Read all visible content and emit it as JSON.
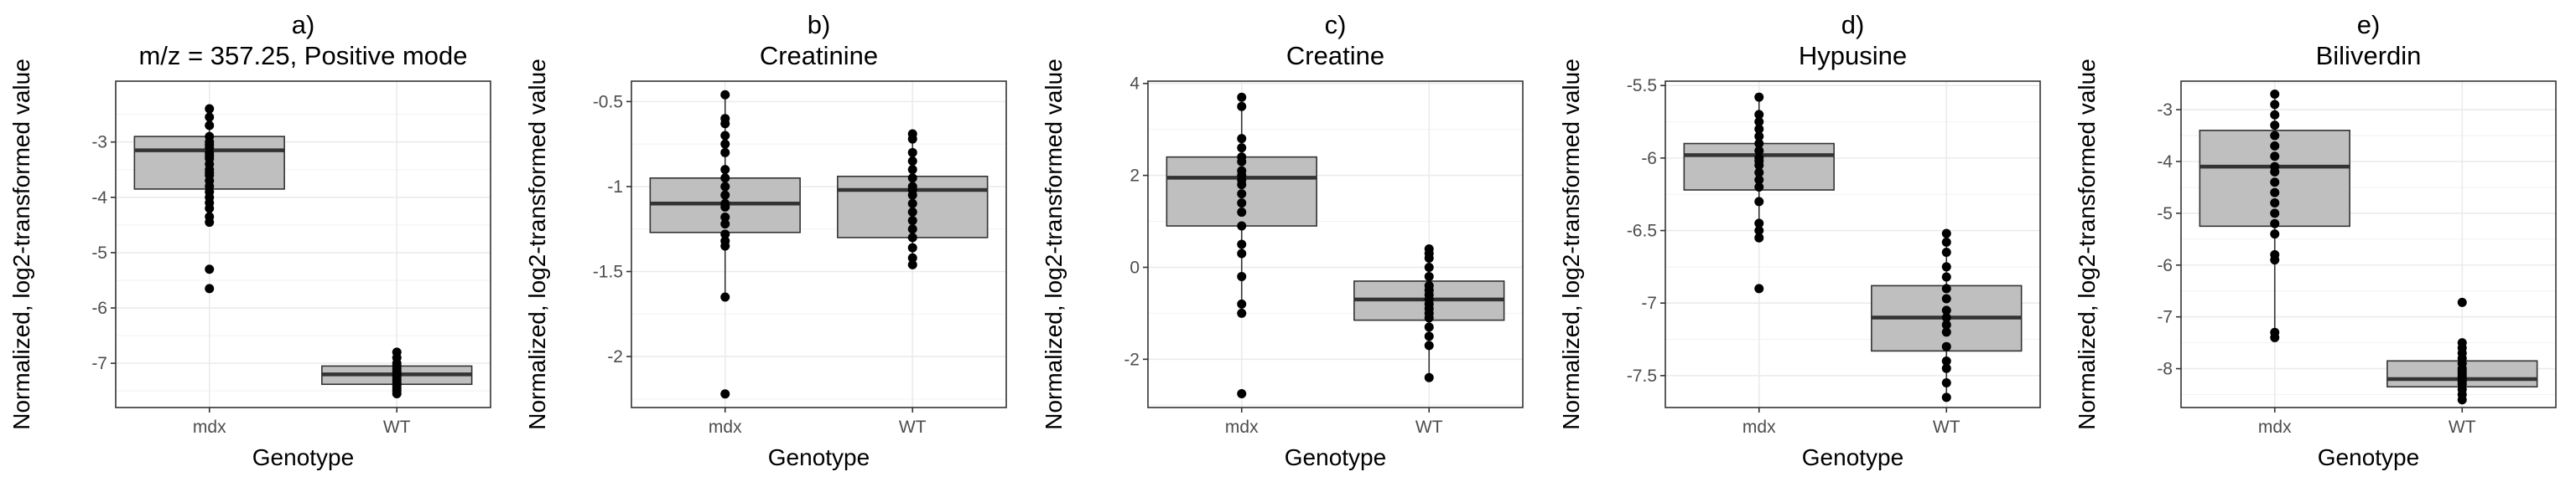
{
  "chart_data": [
    {
      "type": "box",
      "panel": "a)",
      "title": "m/z = 357.25, Positive mode",
      "xlabel": "Genotype",
      "ylabel": "Normalized, log2-transformed value",
      "categories": [
        "mdx",
        "WT"
      ],
      "ylim": [
        -7.8,
        -1.9
      ],
      "yticks": [
        -3,
        -4,
        -5,
        -6,
        -7
      ],
      "grid": true,
      "boxes": [
        {
          "category": "mdx",
          "q1": -3.85,
          "median": -3.15,
          "q3": -2.9,
          "whisker_low": -4.5,
          "whisker_high": -2.4
        },
        {
          "category": "WT",
          "q1": -7.38,
          "median": -7.2,
          "q3": -7.05,
          "whisker_low": -7.55,
          "whisker_high": -6.8
        }
      ],
      "points": [
        {
          "category": "mdx",
          "values": [
            -2.4,
            -2.55,
            -2.7,
            -2.9,
            -3.0,
            -3.05,
            -3.1,
            -3.2,
            -3.25,
            -3.3,
            -3.4,
            -3.5,
            -3.55,
            -3.6,
            -3.7,
            -3.8,
            -3.9,
            -4.0,
            -4.1,
            -4.2,
            -4.35,
            -4.45,
            -5.3,
            -5.65
          ]
        },
        {
          "category": "WT",
          "values": [
            -6.8,
            -6.9,
            -7.0,
            -7.05,
            -7.1,
            -7.15,
            -7.2,
            -7.2,
            -7.25,
            -7.3,
            -7.35,
            -7.4,
            -7.45,
            -7.5,
            -7.55
          ]
        }
      ]
    },
    {
      "type": "box",
      "panel": "b)",
      "title": "Creatinine",
      "xlabel": "Genotype",
      "ylabel": "Normalized, log2-transformed value",
      "categories": [
        "mdx",
        "WT"
      ],
      "ylim": [
        -2.3,
        -0.38
      ],
      "yticks": [
        -0.5,
        -1.0,
        -1.5,
        -2.0
      ],
      "grid": true,
      "boxes": [
        {
          "category": "mdx",
          "q1": -1.27,
          "median": -1.1,
          "q3": -0.95,
          "whisker_low": -1.65,
          "whisker_high": -0.46
        },
        {
          "category": "WT",
          "q1": -1.3,
          "median": -1.02,
          "q3": -0.94,
          "whisker_low": -1.46,
          "whisker_high": -0.69
        }
      ],
      "points": [
        {
          "category": "mdx",
          "values": [
            -0.46,
            -0.6,
            -0.63,
            -0.7,
            -0.75,
            -0.8,
            -0.9,
            -0.95,
            -1.0,
            -1.05,
            -1.1,
            -1.12,
            -1.18,
            -1.22,
            -1.28,
            -1.32,
            -1.35,
            -1.65,
            -2.22
          ]
        },
        {
          "category": "WT",
          "values": [
            -0.69,
            -0.72,
            -0.8,
            -0.85,
            -0.9,
            -0.95,
            -1.0,
            -1.02,
            -1.05,
            -1.1,
            -1.15,
            -1.2,
            -1.25,
            -1.3,
            -1.36,
            -1.42,
            -1.46
          ]
        }
      ]
    },
    {
      "type": "box",
      "panel": "c)",
      "title": "Creatine",
      "xlabel": "Genotype",
      "ylabel": "Normalized, log2-transformed value",
      "categories": [
        "mdx",
        "WT"
      ],
      "ylim": [
        -3.05,
        4.05
      ],
      "yticks": [
        4,
        2,
        0,
        -2
      ],
      "grid": true,
      "boxes": [
        {
          "category": "mdx",
          "q1": 0.9,
          "median": 1.95,
          "q3": 2.4,
          "whisker_low": -1.0,
          "whisker_high": 3.7
        },
        {
          "category": "WT",
          "q1": -1.15,
          "median": -0.7,
          "q3": -0.3,
          "whisker_low": -2.4,
          "whisker_high": 0.4
        }
      ],
      "points": [
        {
          "category": "mdx",
          "values": [
            3.7,
            3.5,
            2.8,
            2.6,
            2.4,
            2.3,
            2.1,
            2.0,
            1.9,
            1.8,
            1.6,
            1.4,
            1.2,
            0.9,
            0.5,
            0.3,
            -0.2,
            -0.8,
            -1.0,
            -2.75
          ]
        },
        {
          "category": "WT",
          "values": [
            0.4,
            0.3,
            0.2,
            0.0,
            -0.2,
            -0.4,
            -0.5,
            -0.6,
            -0.7,
            -0.8,
            -0.9,
            -1.0,
            -1.1,
            -1.3,
            -1.5,
            -1.7,
            -2.4
          ]
        }
      ]
    },
    {
      "type": "box",
      "panel": "d)",
      "title": "Hypusine",
      "xlabel": "Genotype",
      "ylabel": "Normalized, log2-transformed value",
      "categories": [
        "mdx",
        "WT"
      ],
      "ylim": [
        -7.72,
        -5.47
      ],
      "yticks": [
        -5.5,
        -6.0,
        -6.5,
        -7.0,
        -7.5
      ],
      "grid": true,
      "boxes": [
        {
          "category": "mdx",
          "q1": -6.22,
          "median": -5.98,
          "q3": -5.9,
          "whisker_low": -6.55,
          "whisker_high": -5.58
        },
        {
          "category": "WT",
          "q1": -7.33,
          "median": -7.1,
          "q3": -6.88,
          "whisker_low": -7.65,
          "whisker_high": -6.52
        }
      ],
      "points": [
        {
          "category": "mdx",
          "values": [
            -5.58,
            -5.7,
            -5.75,
            -5.8,
            -5.85,
            -5.9,
            -5.95,
            -6.0,
            -6.02,
            -6.05,
            -6.1,
            -6.15,
            -6.2,
            -6.3,
            -6.45,
            -6.5,
            -6.55,
            -6.9
          ]
        },
        {
          "category": "WT",
          "values": [
            -6.52,
            -6.58,
            -6.65,
            -6.75,
            -6.82,
            -6.9,
            -6.97,
            -7.05,
            -7.1,
            -7.15,
            -7.2,
            -7.3,
            -7.4,
            -7.45,
            -7.55,
            -7.65
          ]
        }
      ]
    },
    {
      "type": "box",
      "panel": "e)",
      "title": "Biliverdin",
      "xlabel": "Genotype",
      "ylabel": "Normalized, log2-transformed value",
      "categories": [
        "mdx",
        "WT"
      ],
      "ylim": [
        -8.75,
        -2.45
      ],
      "yticks": [
        -3,
        -4,
        -5,
        -6,
        -7,
        -8
      ],
      "grid": true,
      "boxes": [
        {
          "category": "mdx",
          "q1": -5.25,
          "median": -4.1,
          "q3": -3.4,
          "whisker_low": -7.4,
          "whisker_high": -2.7
        },
        {
          "category": "WT",
          "q1": -8.35,
          "median": -8.2,
          "q3": -7.85,
          "whisker_low": -8.6,
          "whisker_high": -7.5
        }
      ],
      "points": [
        {
          "category": "mdx",
          "values": [
            -2.7,
            -2.9,
            -3.1,
            -3.3,
            -3.5,
            -3.7,
            -3.9,
            -4.1,
            -4.2,
            -4.4,
            -4.6,
            -4.8,
            -5.0,
            -5.2,
            -5.4,
            -5.8,
            -5.9,
            -7.3,
            -7.4
          ]
        },
        {
          "category": "WT",
          "values": [
            -6.72,
            -7.5,
            -7.6,
            -7.7,
            -7.8,
            -7.9,
            -8.0,
            -8.05,
            -8.1,
            -8.15,
            -8.2,
            -8.25,
            -8.3,
            -8.4,
            -8.5,
            -8.6
          ]
        }
      ]
    }
  ]
}
